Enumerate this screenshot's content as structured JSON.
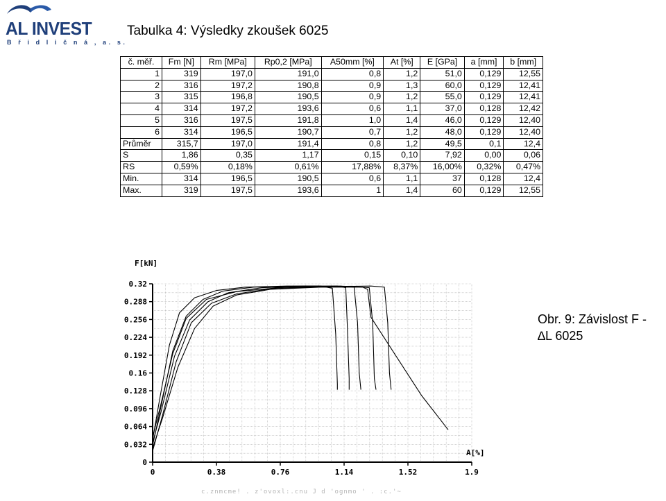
{
  "logo": {
    "word": "AL INVEST",
    "sub": "B ř i d l i č n á ,  a. s.",
    "color": "#1f3f7a"
  },
  "title": "Tabulka 4: Výsledky zkoušek 6025",
  "table": {
    "headers": [
      "č. měř.",
      "Fm [N]",
      "Rm [MPa]",
      "Rp0,2 [MPa]",
      "A50mm [%]",
      "At [%]",
      "E [GPa]",
      "a [mm]",
      "b [mm]"
    ],
    "rows": [
      [
        "1",
        "319",
        "197,0",
        "191,0",
        "0,8",
        "1,2",
        "51,0",
        "0,129",
        "12,55"
      ],
      [
        "2",
        "316",
        "197,2",
        "190,8",
        "0,9",
        "1,3",
        "60,0",
        "0,129",
        "12,41"
      ],
      [
        "3",
        "315",
        "196,8",
        "190,5",
        "0,9",
        "1,2",
        "55,0",
        "0,129",
        "12,41"
      ],
      [
        "4",
        "314",
        "197,2",
        "193,6",
        "0,6",
        "1,1",
        "37,0",
        "0,128",
        "12,42"
      ],
      [
        "5",
        "316",
        "197,5",
        "191,8",
        "1,0",
        "1,4",
        "46,0",
        "0,129",
        "12,40"
      ],
      [
        "6",
        "314",
        "196,5",
        "190,7",
        "0,7",
        "1,2",
        "48,0",
        "0,129",
        "12,40"
      ],
      [
        "Průměr",
        "315,7",
        "197,0",
        "191,4",
        "0,8",
        "1,2",
        "49,5",
        "0,1",
        "12,4"
      ],
      [
        "S",
        "1,86",
        "0,35",
        "1,17",
        "0,15",
        "0,10",
        "7,92",
        "0,00",
        "0,06"
      ],
      [
        "RS",
        "0,59%",
        "0,18%",
        "0,61%",
        "17,88%",
        "8,37%",
        "16,00%",
        "0,32%",
        "0,47%"
      ],
      [
        "Min.",
        "314",
        "196,5",
        "190,5",
        "0,6",
        "1,1",
        "37",
        "0,128",
        "12,4"
      ],
      [
        "Max.",
        "319",
        "197,5",
        "193,6",
        "1",
        "1,4",
        "60",
        "0,129",
        "12,55"
      ]
    ]
  },
  "chart_data": {
    "type": "line",
    "ylabel": "F[kN]",
    "xlabel": "A[%]",
    "xlim": [
      0,
      1.9
    ],
    "ylim": [
      0,
      0.32
    ],
    "x_ticks": [
      "0",
      "0.38",
      "0.76",
      "1.14",
      "1.52",
      "1.9"
    ],
    "y_ticks": [
      "0",
      "0.032",
      "0.064",
      "0.096",
      "0.128",
      "0.16",
      "0.192",
      "0.224",
      "0.256",
      "0.288",
      "0.32"
    ],
    "grid": true,
    "series": [
      {
        "x": [
          0,
          0.05,
          0.12,
          0.2,
          0.3,
          0.42,
          0.6,
          0.9,
          1.1,
          1.15,
          1.16,
          1.17,
          1.17
        ],
        "y": [
          0.03,
          0.1,
          0.2,
          0.262,
          0.292,
          0.307,
          0.314,
          0.316,
          0.316,
          0.313,
          0.24,
          0.15,
          0.13
        ]
      },
      {
        "x": [
          0,
          0.05,
          0.13,
          0.22,
          0.33,
          0.45,
          0.65,
          0.9,
          1.12,
          1.2,
          1.22,
          1.23,
          1.24
        ],
        "y": [
          0.035,
          0.09,
          0.19,
          0.255,
          0.288,
          0.304,
          0.313,
          0.315,
          0.316,
          0.314,
          0.25,
          0.16,
          0.13
        ]
      },
      {
        "x": [
          0,
          0.04,
          0.1,
          0.16,
          0.25,
          0.38,
          0.55,
          0.8,
          1.0,
          1.07,
          1.09,
          1.1,
          1.1
        ],
        "y": [
          0.04,
          0.11,
          0.21,
          0.268,
          0.295,
          0.308,
          0.314,
          0.316,
          0.316,
          0.312,
          0.23,
          0.14,
          0.13
        ]
      },
      {
        "x": [
          0,
          0.06,
          0.15,
          0.25,
          0.36,
          0.5,
          0.7,
          1.0,
          1.25,
          1.28,
          1.3,
          1.6,
          1.76
        ],
        "y": [
          0.025,
          0.08,
          0.17,
          0.24,
          0.28,
          0.3,
          0.31,
          0.314,
          0.314,
          0.31,
          0.26,
          0.12,
          0.058
        ]
      },
      {
        "x": [
          0,
          0.05,
          0.12,
          0.2,
          0.32,
          0.5,
          0.75,
          1.0,
          1.3,
          1.38,
          1.4,
          1.41,
          1.42
        ],
        "y": [
          0.045,
          0.105,
          0.195,
          0.258,
          0.292,
          0.306,
          0.313,
          0.315,
          0.316,
          0.314,
          0.25,
          0.16,
          0.13
        ]
      },
      {
        "x": [
          0,
          0.06,
          0.14,
          0.23,
          0.35,
          0.5,
          0.7,
          0.95,
          1.2,
          1.29,
          1.31,
          1.32,
          1.33
        ],
        "y": [
          0.02,
          0.085,
          0.18,
          0.25,
          0.285,
          0.302,
          0.311,
          0.314,
          0.315,
          0.313,
          0.25,
          0.15,
          0.13
        ]
      }
    ]
  },
  "caption": {
    "line1": "Obr. 9: Závislost F -",
    "line2": "∆L 6025"
  },
  "footer": "c.znmcme! . z'ovoxl:.cnu J d 'ognmo ' . :c.'~"
}
